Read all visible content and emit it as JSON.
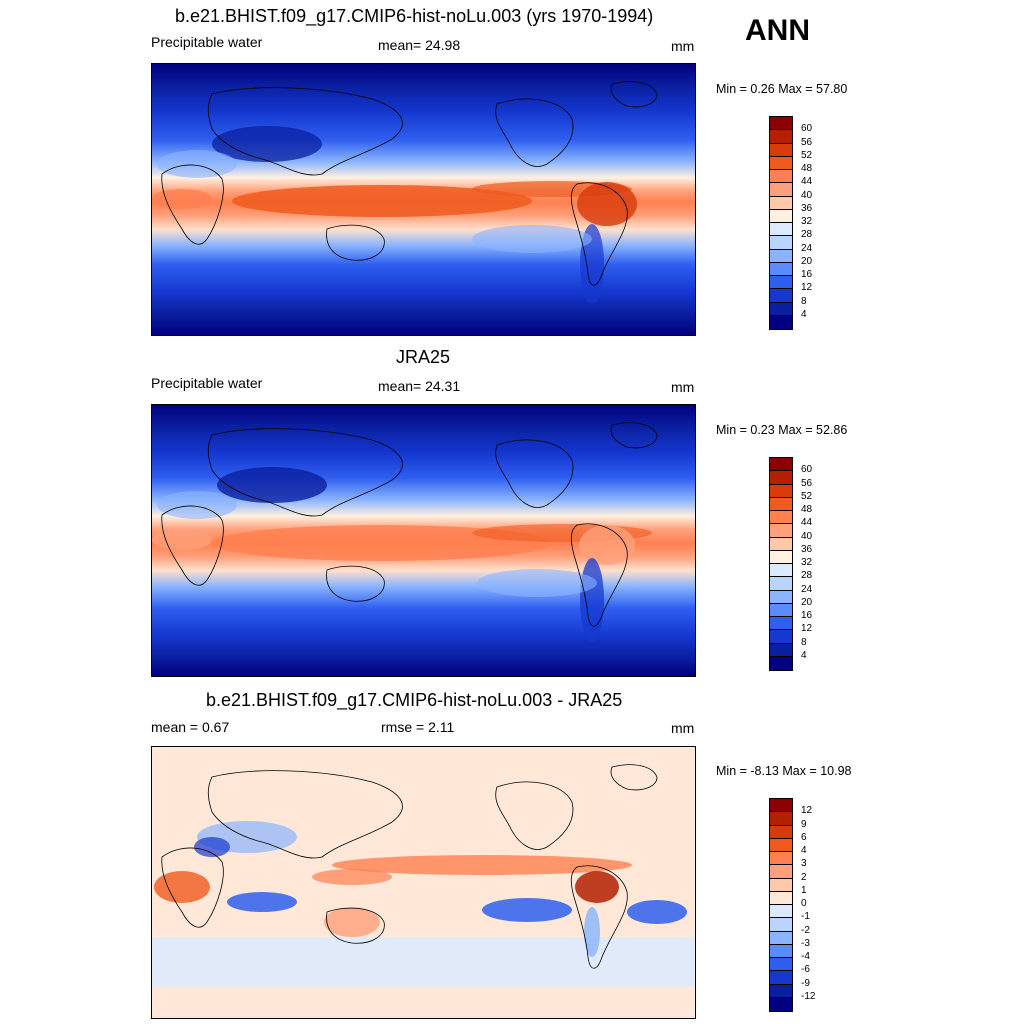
{
  "season": "ANN",
  "panels": [
    {
      "id": "model",
      "title": "b.e21.BHIST.f09_g17.CMIP6-hist-noLu.003 (yrs 1970-1994)",
      "left_label": "Precipitable water",
      "center_label": "mean=  24.98",
      "units": "mm",
      "minmax": "Min =   0.26 Max =  57.80",
      "colorbar": {
        "labels": [
          "60",
          "56",
          "52",
          "48",
          "44",
          "40",
          "36",
          "32",
          "28",
          "24",
          "20",
          "16",
          "12",
          "8",
          "4"
        ],
        "colors": [
          "#8b0000",
          "#b22000",
          "#d83a0a",
          "#f05a1e",
          "#ff8050",
          "#ffa07a",
          "#ffc8a8",
          "#fff0e0",
          "#dbeaff",
          "#b8d4ff",
          "#8ab4ff",
          "#5a8cff",
          "#2f5ff0",
          "#1538d0",
          "#0a1fa0",
          "#000080"
        ]
      }
    },
    {
      "id": "obs",
      "title": "JRA25",
      "left_label": "Precipitable water",
      "center_label": "mean=  24.31",
      "units": "mm",
      "minmax": "Min =   0.23 Max =  52.86",
      "colorbar": {
        "labels": [
          "60",
          "56",
          "52",
          "48",
          "44",
          "40",
          "36",
          "32",
          "28",
          "24",
          "20",
          "16",
          "12",
          "8",
          "4"
        ],
        "colors": [
          "#8b0000",
          "#b22000",
          "#d83a0a",
          "#f05a1e",
          "#ff8050",
          "#ffa07a",
          "#ffc8a8",
          "#fff0e0",
          "#dbeaff",
          "#b8d4ff",
          "#8ab4ff",
          "#5a8cff",
          "#2f5ff0",
          "#1538d0",
          "#0a1fa0",
          "#000080"
        ]
      }
    },
    {
      "id": "diff",
      "title": "b.e21.BHIST.f09_g17.CMIP6-hist-noLu.003 - JRA25",
      "left_label": "mean =   0.67",
      "center_label": "rmse =   2.11",
      "units": "mm",
      "minmax": "Min =  -8.13 Max =  10.98",
      "colorbar": {
        "labels": [
          "12",
          "9",
          "6",
          "4",
          "3",
          "2",
          "1",
          "0",
          "-1",
          "-2",
          "-3",
          "-4",
          "-6",
          "-9",
          "-12"
        ],
        "colors": [
          "#8b0000",
          "#b22000",
          "#d83a0a",
          "#f05a1e",
          "#ff8050",
          "#ffa07a",
          "#ffc8a8",
          "#ffe8d8",
          "#dbeaff",
          "#b8d4ff",
          "#8ab4ff",
          "#5a8cff",
          "#2f5ff0",
          "#1538d0",
          "#0a1fa0",
          "#000080"
        ]
      }
    }
  ]
}
